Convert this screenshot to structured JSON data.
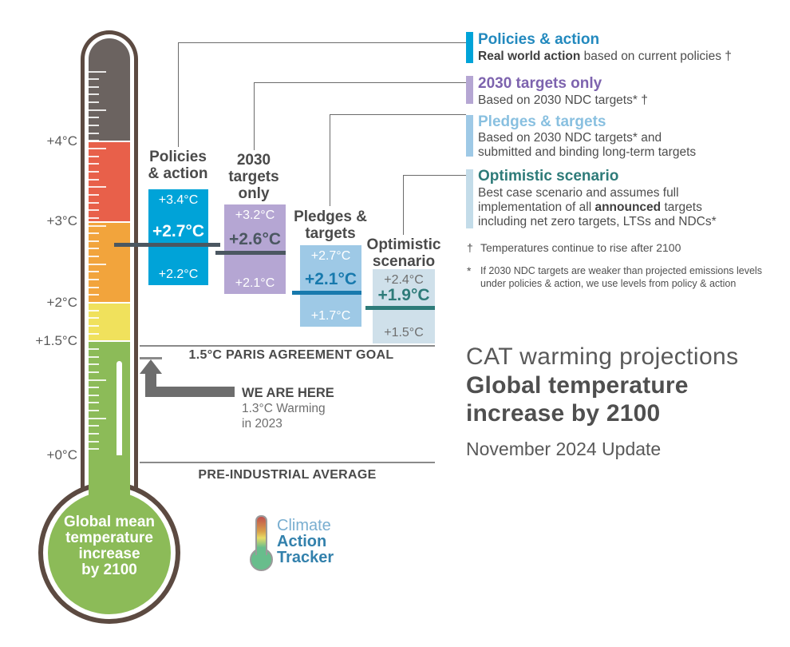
{
  "title_block": {
    "line1": "CAT warming projections",
    "line2": "Global temperature",
    "line3": "increase by 2100",
    "update": "November 2024 Update"
  },
  "thermometer": {
    "scale_labels": [
      "+4°C",
      "+3°C",
      "+2°C",
      "+1.5°C",
      "+0°C"
    ],
    "bulb_lines": [
      "Global mean",
      "temperature",
      "increase",
      "by 2100"
    ]
  },
  "annotations": {
    "paris_goal": "1.5°C PARIS AGREEMENT GOAL",
    "pre_industrial": "PRE-INDUSTRIAL AVERAGE",
    "we_are_here": "WE ARE HERE",
    "warming_line1": "1.3°C Warming",
    "warming_line2": "in 2023"
  },
  "bars": [
    {
      "title_lines": [
        "Policies",
        "& action"
      ],
      "top": "+3.4°C",
      "mid": "+2.7°C",
      "bottom": "+2.2°C",
      "fill": "#00a3d8",
      "mid_color": "#ffffff",
      "line_color": "#4b5761"
    },
    {
      "title_lines": [
        "2030",
        "targets",
        "only"
      ],
      "top": "+3.2°C",
      "mid": "+2.6°C",
      "bottom": "+2.1°C",
      "fill": "#b5a6d3",
      "mid_color": "#4b5761",
      "line_color": "#4b5761"
    },
    {
      "title_lines": [
        "Pledges &",
        "targets"
      ],
      "top": "+2.7°C",
      "mid": "+2.1°C",
      "bottom": "+1.7°C",
      "fill": "#9ec9e6",
      "mid_color": "#1779ad",
      "line_color": "#1779ad"
    },
    {
      "title_lines": [
        "Optimistic",
        "scenario"
      ],
      "top": "+2.4°C",
      "mid": "+1.9°C",
      "bottom": "+1.5°C",
      "fill": "#cfe0ea",
      "mid_color": "#2e7b79",
      "line_color": "#2e7b79",
      "range_color": "#6e6e6e"
    }
  ],
  "legend": {
    "items": [
      {
        "title": "Policies & action",
        "title_color": "#2289be",
        "marker_color": "#00a3d8",
        "body_bold": "Real world action",
        "body_rest": " based on current policies †"
      },
      {
        "title": "2030 targets only",
        "title_color": "#7d63ae",
        "marker_color": "#b5a6d3",
        "body_line1": "Based on 2030 NDC targets* †"
      },
      {
        "title": "Pledges & targets",
        "title_color": "#89c0e0",
        "marker_color": "#9ec9e6",
        "body_line1": "Based on 2030 NDC targets* and",
        "body_line2": "submitted and binding long-term targets"
      },
      {
        "title": "Optimistic scenario",
        "title_color": "#2e7b79",
        "marker_color": "#c3dce9",
        "body_line1": "Best case scenario and assumes full",
        "body_line2_pre": "implementation of all ",
        "body_line2_bold": "announced",
        "body_line2_post": " targets",
        "body_line3": "including net zero targets, LTSs and NDCs*"
      }
    ]
  },
  "footnotes": {
    "dagger_symbol": "†",
    "dagger_text": "Temperatures continue to rise after 2100",
    "star_symbol": "*",
    "star_line1": "If 2030 NDC targets are weaker than projected emissions levels",
    "star_line2": "under policies & action, we use levels from policy & action"
  },
  "logo": {
    "line1": "Climate",
    "line2": "Action",
    "line3": "Tracker"
  },
  "colors": {
    "cyan": "#00a3d8",
    "purple": "#b5a6d3",
    "light_blue": "#9ec9e6",
    "pale_blue": "#cfe0ea",
    "slate": "#4b5761",
    "pledges_blue": "#1779ad",
    "optimistic_teal": "#2e7b79",
    "thermo_dark": "#6b6360",
    "thermo_red": "#e8604a",
    "thermo_orange": "#f2a43c",
    "thermo_yellow": "#f0e15c",
    "thermo_green": "#8cbb58",
    "thermo_outline": "#5c4a41"
  },
  "chart_data": {
    "type": "bar",
    "title": "CAT warming projections — Global temperature increase by 2100",
    "subtitle": "November 2024 Update",
    "ylabel": "Global mean temperature increase by 2100 (°C above pre-industrial average)",
    "ylim": [
      0,
      5.1
    ],
    "axis_ticks": [
      "+0°C",
      "+1.5°C",
      "+2°C",
      "+3°C",
      "+4°C"
    ],
    "categories": [
      "Policies & action",
      "2030 targets only",
      "Pledges & targets",
      "Optimistic scenario"
    ],
    "series": [
      {
        "name": "Policies & action",
        "central": 2.7,
        "low": 2.2,
        "high": 3.4
      },
      {
        "name": "2030 targets only",
        "central": 2.6,
        "low": 2.1,
        "high": 3.2
      },
      {
        "name": "Pledges & targets",
        "central": 2.1,
        "low": 1.7,
        "high": 2.7
      },
      {
        "name": "Optimistic scenario",
        "central": 1.9,
        "low": 1.5,
        "high": 2.4
      }
    ],
    "reference_lines": [
      {
        "label": "1.5°C PARIS AGREEMENT GOAL",
        "value": 1.5
      },
      {
        "label": "WE ARE HERE — 1.3°C Warming in 2023",
        "value": 1.3
      },
      {
        "label": "PRE-INDUSTRIAL AVERAGE",
        "value": 0
      }
    ],
    "legend_position": "right",
    "grid": false
  }
}
